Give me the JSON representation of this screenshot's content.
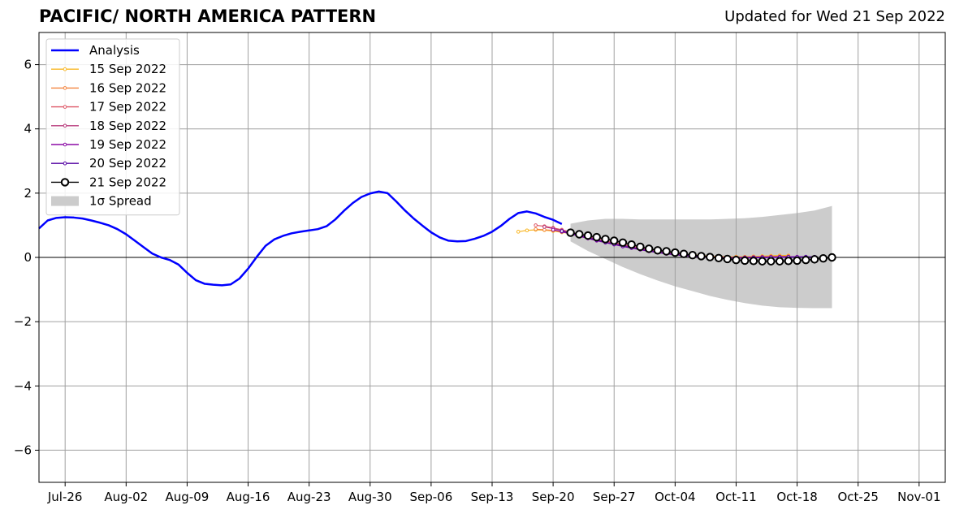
{
  "chart_data": {
    "type": "line",
    "title": "PACIFIC/ NORTH AMERICA PATTERN",
    "subtitle": "Updated for Wed 21 Sep 2022",
    "xlabel": "",
    "ylabel": "",
    "x_axis_type": "date",
    "xlim": [
      "2022-07-23",
      "2022-11-04"
    ],
    "ylim": [
      -7,
      7
    ],
    "yticks": [
      -6,
      -4,
      -2,
      0,
      2,
      4,
      6
    ],
    "ytick_labels": [
      "−6",
      "−4",
      "−2",
      "0",
      "2",
      "4",
      "6"
    ],
    "xticks": [
      "2022-07-26",
      "2022-08-02",
      "2022-08-09",
      "2022-08-16",
      "2022-08-23",
      "2022-08-30",
      "2022-09-06",
      "2022-09-13",
      "2022-09-20",
      "2022-09-27",
      "2022-10-04",
      "2022-10-11",
      "2022-10-18",
      "2022-10-25",
      "2022-11-01"
    ],
    "xtick_labels": [
      "Jul-26",
      "Aug-02",
      "Aug-09",
      "Aug-16",
      "Aug-23",
      "Aug-30",
      "Sep-06",
      "Sep-13",
      "Sep-20",
      "Sep-27",
      "Oct-04",
      "Oct-11",
      "Oct-18",
      "Oct-25",
      "Nov-01"
    ],
    "grid": true,
    "zero_line": true,
    "legend": {
      "placement": "top-left",
      "entries": [
        {
          "label": "Analysis",
          "kind": "line",
          "color": "#0000ff"
        },
        {
          "label": "15 Sep 2022",
          "kind": "marker-line",
          "color": "#f9b725"
        },
        {
          "label": "16 Sep 2022",
          "kind": "marker-line",
          "color": "#f3843f"
        },
        {
          "label": "17 Sep 2022",
          "kind": "marker-line",
          "color": "#de5868"
        },
        {
          "label": "18 Sep 2022",
          "kind": "marker-line",
          "color": "#b73779"
        },
        {
          "label": "19 Sep 2022",
          "kind": "marker-line",
          "color": "#8b0aa5"
        },
        {
          "label": "20 Sep 2022",
          "kind": "marker-line",
          "color": "#5302a3"
        },
        {
          "label": "21 Sep 2022",
          "kind": "big-marker-line",
          "color": "#000000"
        },
        {
          "label": "1σ Spread",
          "kind": "patch",
          "color": "#cccccc"
        }
      ]
    },
    "series": [
      {
        "name": "Analysis",
        "color": "#0000ff",
        "x": [
          "2022-07-23",
          "2022-07-24",
          "2022-07-25",
          "2022-07-26",
          "2022-07-27",
          "2022-07-28",
          "2022-07-29",
          "2022-07-30",
          "2022-07-31",
          "2022-08-01",
          "2022-08-02",
          "2022-08-03",
          "2022-08-04",
          "2022-08-05",
          "2022-08-06",
          "2022-08-07",
          "2022-08-08",
          "2022-08-09",
          "2022-08-10",
          "2022-08-11",
          "2022-08-12",
          "2022-08-13",
          "2022-08-14",
          "2022-08-15",
          "2022-08-16",
          "2022-08-17",
          "2022-08-18",
          "2022-08-19",
          "2022-08-20",
          "2022-08-21",
          "2022-08-22",
          "2022-08-23",
          "2022-08-24",
          "2022-08-25",
          "2022-08-26",
          "2022-08-27",
          "2022-08-28",
          "2022-08-29",
          "2022-08-30",
          "2022-08-31",
          "2022-09-01",
          "2022-09-02",
          "2022-09-03",
          "2022-09-04",
          "2022-09-05",
          "2022-09-06",
          "2022-09-07",
          "2022-09-08",
          "2022-09-09",
          "2022-09-10",
          "2022-09-11",
          "2022-09-12",
          "2022-09-13",
          "2022-09-14",
          "2022-09-15",
          "2022-09-16",
          "2022-09-17",
          "2022-09-18",
          "2022-09-19",
          "2022-09-20",
          "2022-09-21"
        ],
        "y": [
          0.9,
          1.15,
          1.23,
          1.25,
          1.24,
          1.21,
          1.15,
          1.08,
          1.0,
          0.88,
          0.72,
          0.52,
          0.32,
          0.12,
          0.0,
          -0.08,
          -0.22,
          -0.48,
          -0.71,
          -0.82,
          -0.85,
          -0.87,
          -0.84,
          -0.66,
          -0.35,
          0.02,
          0.36,
          0.56,
          0.67,
          0.75,
          0.8,
          0.84,
          0.88,
          0.97,
          1.18,
          1.45,
          1.69,
          1.88,
          1.99,
          2.05,
          2.0,
          1.74,
          1.46,
          1.21,
          0.99,
          0.78,
          0.62,
          0.52,
          0.5,
          0.51,
          0.58,
          0.67,
          0.8,
          0.98,
          1.2,
          1.38,
          1.43,
          1.37,
          1.26,
          1.17,
          1.04
        ]
      },
      {
        "name": "15 Sep 2022",
        "color": "#f9b725",
        "x": [
          "2022-09-16",
          "2022-09-17",
          "2022-09-18",
          "2022-09-19",
          "2022-09-20",
          "2022-09-21",
          "2022-09-22",
          "2022-09-23",
          "2022-09-24",
          "2022-09-25",
          "2022-09-26",
          "2022-09-27",
          "2022-09-28",
          "2022-09-29",
          "2022-09-30",
          "2022-10-01",
          "2022-10-02",
          "2022-10-03",
          "2022-10-04",
          "2022-10-05",
          "2022-10-06",
          "2022-10-07",
          "2022-10-08",
          "2022-10-09",
          "2022-10-10",
          "2022-10-11",
          "2022-10-12",
          "2022-10-13",
          "2022-10-14",
          "2022-10-15",
          "2022-10-16",
          "2022-10-17"
        ],
        "y": [
          0.8,
          0.84,
          0.86,
          0.85,
          0.82,
          0.78,
          0.74,
          0.68,
          0.62,
          0.56,
          0.5,
          0.45,
          0.4,
          0.35,
          0.3,
          0.26,
          0.22,
          0.18,
          0.14,
          0.11,
          0.08,
          0.06,
          0.04,
          0.03,
          0.02,
          0.02,
          0.02,
          0.03,
          0.04,
          0.05,
          0.06,
          0.06
        ]
      },
      {
        "name": "16 Sep 2022",
        "color": "#f3843f",
        "x": [
          "2022-09-18",
          "2022-09-19",
          "2022-09-20",
          "2022-09-21",
          "2022-09-22",
          "2022-09-23",
          "2022-09-24",
          "2022-09-25",
          "2022-09-26",
          "2022-09-27",
          "2022-09-28",
          "2022-09-29",
          "2022-09-30",
          "2022-10-01",
          "2022-10-02",
          "2022-10-03",
          "2022-10-04",
          "2022-10-05",
          "2022-10-06",
          "2022-10-07",
          "2022-10-08",
          "2022-10-09",
          "2022-10-10",
          "2022-10-11",
          "2022-10-12",
          "2022-10-13",
          "2022-10-14",
          "2022-10-15",
          "2022-10-16",
          "2022-10-17"
        ],
        "y": [
          0.88,
          0.86,
          0.84,
          0.8,
          0.75,
          0.69,
          0.63,
          0.57,
          0.51,
          0.46,
          0.4,
          0.35,
          0.3,
          0.25,
          0.21,
          0.17,
          0.13,
          0.1,
          0.07,
          0.05,
          0.03,
          0.02,
          0.01,
          0.01,
          0.01,
          0.02,
          0.02,
          0.03,
          0.03,
          0.04
        ]
      },
      {
        "name": "17 Sep 2022",
        "color": "#de5868",
        "x": [
          "2022-09-18",
          "2022-09-19",
          "2022-09-20",
          "2022-09-21",
          "2022-09-22",
          "2022-09-23",
          "2022-09-24",
          "2022-09-25",
          "2022-09-26",
          "2022-09-27",
          "2022-09-28",
          "2022-09-29",
          "2022-09-30",
          "2022-10-01",
          "2022-10-02",
          "2022-10-03",
          "2022-10-04",
          "2022-10-05",
          "2022-10-06",
          "2022-10-07",
          "2022-10-08",
          "2022-10-09",
          "2022-10-10",
          "2022-10-11",
          "2022-10-12",
          "2022-10-13",
          "2022-10-14",
          "2022-10-15",
          "2022-10-16",
          "2022-10-17"
        ],
        "y": [
          1.0,
          0.97,
          0.92,
          0.86,
          0.79,
          0.72,
          0.65,
          0.58,
          0.52,
          0.46,
          0.4,
          0.35,
          0.3,
          0.25,
          0.2,
          0.16,
          0.12,
          0.09,
          0.06,
          0.04,
          0.02,
          0.01,
          0.0,
          0.0,
          0.0,
          0.01,
          0.01,
          0.02,
          0.02,
          0.02
        ]
      },
      {
        "name": "18 Sep 2022",
        "color": "#b73779",
        "x": [
          "2022-09-19",
          "2022-09-20",
          "2022-09-21",
          "2022-09-22",
          "2022-09-23",
          "2022-09-24",
          "2022-09-25",
          "2022-09-26",
          "2022-09-27",
          "2022-09-28",
          "2022-09-29",
          "2022-09-30",
          "2022-10-01",
          "2022-10-02",
          "2022-10-03",
          "2022-10-04",
          "2022-10-05",
          "2022-10-06",
          "2022-10-07",
          "2022-10-08",
          "2022-10-09",
          "2022-10-10",
          "2022-10-11",
          "2022-10-12",
          "2022-10-13",
          "2022-10-14",
          "2022-10-15",
          "2022-10-16",
          "2022-10-17",
          "2022-10-18"
        ],
        "y": [
          0.95,
          0.9,
          0.84,
          0.77,
          0.7,
          0.63,
          0.56,
          0.5,
          0.44,
          0.38,
          0.33,
          0.28,
          0.23,
          0.19,
          0.15,
          0.11,
          0.08,
          0.05,
          0.03,
          0.01,
          0.0,
          -0.01,
          -0.01,
          -0.01,
          0.0,
          0.0,
          0.01,
          0.01,
          0.02,
          0.02
        ]
      },
      {
        "name": "19 Sep 2022",
        "color": "#8b0aa5",
        "x": [
          "2022-09-20",
          "2022-09-21",
          "2022-09-22",
          "2022-09-23",
          "2022-09-24",
          "2022-09-25",
          "2022-09-26",
          "2022-09-27",
          "2022-09-28",
          "2022-09-29",
          "2022-09-30",
          "2022-10-01",
          "2022-10-02",
          "2022-10-03",
          "2022-10-04",
          "2022-10-05",
          "2022-10-06",
          "2022-10-07",
          "2022-10-08",
          "2022-10-09",
          "2022-10-10",
          "2022-10-11",
          "2022-10-12",
          "2022-10-13",
          "2022-10-14",
          "2022-10-15",
          "2022-10-16",
          "2022-10-17",
          "2022-10-18",
          "2022-10-19"
        ],
        "y": [
          0.86,
          0.8,
          0.73,
          0.66,
          0.59,
          0.52,
          0.46,
          0.4,
          0.34,
          0.29,
          0.24,
          0.19,
          0.15,
          0.11,
          0.08,
          0.05,
          0.03,
          0.01,
          0.0,
          -0.01,
          -0.01,
          -0.01,
          0.0,
          0.0,
          0.01,
          0.01,
          0.02,
          0.02,
          0.02,
          0.02
        ]
      },
      {
        "name": "20 Sep 2022",
        "color": "#5302a3",
        "x": [
          "2022-09-21",
          "2022-09-22",
          "2022-09-23",
          "2022-09-24",
          "2022-09-25",
          "2022-09-26",
          "2022-09-27",
          "2022-09-28",
          "2022-09-29",
          "2022-09-30",
          "2022-10-01",
          "2022-10-02",
          "2022-10-03",
          "2022-10-04",
          "2022-10-05",
          "2022-10-06",
          "2022-10-07",
          "2022-10-08",
          "2022-10-09",
          "2022-10-10",
          "2022-10-11",
          "2022-10-12",
          "2022-10-13",
          "2022-10-14",
          "2022-10-15",
          "2022-10-16",
          "2022-10-17",
          "2022-10-18",
          "2022-10-19",
          "2022-10-20"
        ],
        "y": [
          0.82,
          0.75,
          0.68,
          0.61,
          0.54,
          0.47,
          0.41,
          0.35,
          0.3,
          0.25,
          0.2,
          0.16,
          0.12,
          0.09,
          0.06,
          0.04,
          0.02,
          0.0,
          -0.01,
          -0.02,
          -0.02,
          -0.02,
          -0.01,
          -0.01,
          0.0,
          0.0,
          0.01,
          0.01,
          0.02,
          0.02
        ]
      },
      {
        "name": "21 Sep 2022",
        "color": "#000000",
        "x": [
          "2022-09-22",
          "2022-09-23",
          "2022-09-24",
          "2022-09-25",
          "2022-09-26",
          "2022-09-27",
          "2022-09-28",
          "2022-09-29",
          "2022-09-30",
          "2022-10-01",
          "2022-10-02",
          "2022-10-03",
          "2022-10-04",
          "2022-10-05",
          "2022-10-06",
          "2022-10-07",
          "2022-10-08",
          "2022-10-09",
          "2022-10-10",
          "2022-10-11",
          "2022-10-12",
          "2022-10-13",
          "2022-10-14",
          "2022-10-15",
          "2022-10-16",
          "2022-10-17",
          "2022-10-18",
          "2022-10-19",
          "2022-10-20",
          "2022-10-21",
          "2022-10-22"
        ],
        "y": [
          0.77,
          0.72,
          0.68,
          0.63,
          0.57,
          0.52,
          0.46,
          0.4,
          0.33,
          0.27,
          0.22,
          0.19,
          0.15,
          0.11,
          0.07,
          0.04,
          0.01,
          -0.02,
          -0.05,
          -0.08,
          -0.1,
          -0.11,
          -0.12,
          -0.12,
          -0.12,
          -0.11,
          -0.1,
          -0.08,
          -0.06,
          -0.03,
          0.0
        ]
      }
    ],
    "spread": {
      "name": "1σ Spread",
      "color": "#cccccc",
      "x": [
        "2022-09-22",
        "2022-09-24",
        "2022-09-26",
        "2022-09-28",
        "2022-09-30",
        "2022-10-02",
        "2022-10-04",
        "2022-10-06",
        "2022-10-08",
        "2022-10-10",
        "2022-10-12",
        "2022-10-14",
        "2022-10-16",
        "2022-10-18",
        "2022-10-20",
        "2022-10-22"
      ],
      "upper": [
        1.05,
        1.15,
        1.2,
        1.2,
        1.18,
        1.18,
        1.18,
        1.18,
        1.18,
        1.2,
        1.22,
        1.26,
        1.32,
        1.38,
        1.46,
        1.6
      ],
      "lower": [
        0.5,
        0.2,
        -0.05,
        -0.3,
        -0.52,
        -0.72,
        -0.9,
        -1.05,
        -1.2,
        -1.32,
        -1.42,
        -1.5,
        -1.55,
        -1.57,
        -1.58,
        -1.58
      ]
    }
  }
}
